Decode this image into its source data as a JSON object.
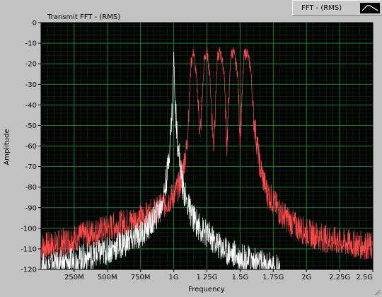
{
  "legend": {
    "label": "FFT - (RMS)"
  },
  "colors": {
    "background": "#000000",
    "grid": "#0a8a2a",
    "trace_transmit": "#ffffff",
    "trace_secondary": "#ff4a4a",
    "frame": "#c2c2c2"
  },
  "chart_data": {
    "type": "line",
    "title": "Transmit FFT - (RMS)",
    "xlabel": "Frequency",
    "ylabel": "Amplitude",
    "xlim": [
      0,
      2500000000
    ],
    "ylim": [
      -120,
      0
    ],
    "grid": true,
    "legend_position": "top-right",
    "x_ticks": [
      {
        "value": 250000000,
        "label": "250M"
      },
      {
        "value": 500000000,
        "label": "500M"
      },
      {
        "value": 750000000,
        "label": "750M"
      },
      {
        "value": 1000000000,
        "label": "1G"
      },
      {
        "value": 1250000000,
        "label": "1.25G"
      },
      {
        "value": 1500000000,
        "label": "1.5G"
      },
      {
        "value": 1750000000,
        "label": "1.75G"
      },
      {
        "value": 2000000000,
        "label": "2G"
      },
      {
        "value": 2250000000,
        "label": "2.25G"
      },
      {
        "value": 2500000000,
        "label": "2.5G"
      }
    ],
    "y_ticks": [
      {
        "value": 0,
        "label": "0"
      },
      {
        "value": -10,
        "label": "-10"
      },
      {
        "value": -20,
        "label": "-20"
      },
      {
        "value": -30,
        "label": "-30"
      },
      {
        "value": -40,
        "label": "-40"
      },
      {
        "value": -50,
        "label": "-50"
      },
      {
        "value": -60,
        "label": "-60"
      },
      {
        "value": -70,
        "label": "-70"
      },
      {
        "value": -80,
        "label": "-80"
      },
      {
        "value": -90,
        "label": "-90"
      },
      {
        "value": -100,
        "label": "-100"
      },
      {
        "value": -110,
        "label": "-110"
      },
      {
        "value": -120,
        "label": "-120"
      }
    ],
    "series": [
      {
        "color": "#ff4a4a",
        "x": [
          0,
          100000000,
          200000000,
          300000000,
          400000000,
          500000000,
          600000000,
          700000000,
          800000000,
          900000000,
          1000000000,
          1050000000,
          1100000000,
          1130000000,
          1150000000,
          1170000000,
          1200000000,
          1230000000,
          1250000000,
          1270000000,
          1300000000,
          1330000000,
          1350000000,
          1380000000,
          1400000000,
          1430000000,
          1450000000,
          1480000000,
          1500000000,
          1530000000,
          1550000000,
          1580000000,
          1600000000,
          1650000000,
          1700000000,
          1800000000,
          1900000000,
          2000000000,
          2100000000,
          2200000000,
          2300000000,
          2400000000,
          2500000000
        ],
        "y": [
          -109,
          -108,
          -106,
          -104,
          -102,
          -100,
          -98,
          -96,
          -94,
          -90,
          -84,
          -78,
          -60,
          -20,
          -14,
          -26,
          -55,
          -18,
          -14,
          -24,
          -60,
          -17,
          -14,
          -24,
          -60,
          -16,
          -14,
          -24,
          -55,
          -16,
          -14,
          -22,
          -45,
          -70,
          -82,
          -92,
          -98,
          -102,
          -104,
          -106,
          -107,
          -108,
          -109
        ]
      },
      {
        "color": "#ffffff",
        "x": [
          0,
          100000000,
          200000000,
          300000000,
          400000000,
          500000000,
          600000000,
          700000000,
          800000000,
          850000000,
          900000000,
          930000000,
          950000000,
          970000000,
          990000000,
          1000000000,
          1010000000,
          1030000000,
          1050000000,
          1070000000,
          1100000000,
          1150000000,
          1200000000,
          1300000000,
          1400000000,
          1500000000,
          1600000000,
          1700000000,
          1800000000
        ],
        "y": [
          -119,
          -118,
          -117,
          -115,
          -113,
          -111,
          -108,
          -105,
          -100,
          -96,
          -90,
          -82,
          -74,
          -60,
          -40,
          -15,
          -38,
          -58,
          -70,
          -80,
          -88,
          -95,
          -100,
          -106,
          -111,
          -114,
          -116,
          -118,
          -120
        ]
      }
    ]
  }
}
